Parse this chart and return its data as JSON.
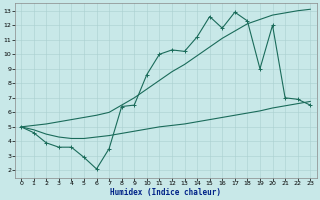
{
  "bg_color": "#c8e8e8",
  "grid_color": "#aad0d0",
  "line_color": "#1a6b5a",
  "xlabel": "Humidex (Indice chaleur)",
  "xlim": [
    -0.5,
    23.5
  ],
  "ylim": [
    1.5,
    13.5
  ],
  "xticks": [
    0,
    1,
    2,
    3,
    4,
    5,
    6,
    7,
    8,
    9,
    10,
    11,
    12,
    13,
    14,
    15,
    16,
    17,
    18,
    19,
    20,
    21,
    22,
    23
  ],
  "yticks": [
    2,
    3,
    4,
    5,
    6,
    7,
    8,
    9,
    10,
    11,
    12,
    13
  ],
  "line1_x": [
    0,
    1,
    2,
    3,
    4,
    5,
    6,
    7,
    8,
    9,
    10,
    11,
    12,
    13,
    14,
    15,
    16,
    17,
    18,
    19,
    20,
    21,
    22,
    23
  ],
  "line1_y": [
    5.0,
    4.6,
    3.9,
    3.6,
    3.6,
    2.9,
    2.1,
    3.5,
    6.4,
    6.5,
    8.6,
    10.0,
    10.3,
    10.2,
    11.2,
    12.6,
    11.8,
    12.9,
    12.3,
    9.0,
    12.0,
    7.0,
    6.9,
    6.5
  ],
  "line2_x": [
    0,
    1,
    2,
    3,
    4,
    5,
    6,
    7,
    8,
    9,
    10,
    11,
    12,
    13,
    14,
    15,
    16,
    17,
    18,
    19,
    20,
    21,
    22,
    23
  ],
  "line2_y": [
    5.0,
    5.1,
    5.2,
    5.35,
    5.5,
    5.65,
    5.8,
    6.0,
    6.5,
    7.0,
    7.6,
    8.2,
    8.8,
    9.3,
    9.9,
    10.5,
    11.1,
    11.6,
    12.1,
    12.4,
    12.7,
    12.85,
    13.0,
    13.1
  ],
  "line3_x": [
    0,
    1,
    2,
    3,
    4,
    5,
    6,
    7,
    8,
    9,
    10,
    11,
    12,
    13,
    14,
    15,
    16,
    17,
    18,
    19,
    20,
    21,
    22,
    23
  ],
  "line3_y": [
    5.0,
    4.8,
    4.5,
    4.3,
    4.2,
    4.2,
    4.3,
    4.4,
    4.55,
    4.7,
    4.85,
    5.0,
    5.1,
    5.2,
    5.35,
    5.5,
    5.65,
    5.8,
    5.95,
    6.1,
    6.3,
    6.45,
    6.6,
    6.75
  ]
}
